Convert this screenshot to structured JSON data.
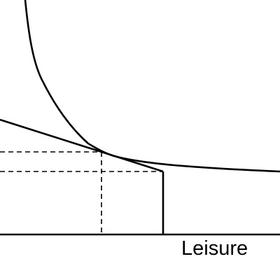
{
  "diagram": {
    "x_axis_label": "Leisure",
    "line_color": "#000000",
    "background_color": "#ffffff",
    "elements": [
      "indifference-curve",
      "budget-constraint",
      "endowment-vertical-line",
      "tangency-dashed-lines",
      "x-axis"
    ]
  }
}
